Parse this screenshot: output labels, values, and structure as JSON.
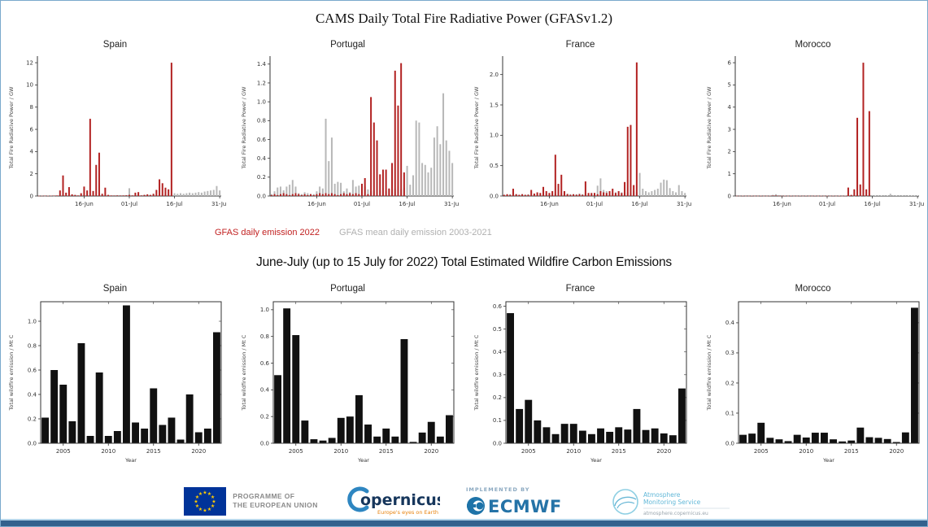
{
  "page": {
    "top_title": "CAMS Daily Total Fire Radiative Power (GFASv1.2)",
    "bottom_title": "June-July (up to 15 July for 2022) Total Estimated Wildfire Carbon Emissions"
  },
  "legend": {
    "red_label": "GFAS daily emission 2022",
    "gray_label": "GFAS mean daily emission 2003-2021",
    "red_color": "#c22222",
    "gray_color": "#b0b0b0"
  },
  "footer": {
    "eu_text_line1": "PROGRAMME OF",
    "eu_text_line2": "THE EUROPEAN UNION",
    "copernicus_name": "opernicus",
    "copernicus_tagline": "Europe's eyes on Earth",
    "implemented_by": "IMPLEMENTED BY",
    "ecmwf_name": "ECMWF",
    "ams_line1": "Atmosphere",
    "ams_line2": "Monitoring Service",
    "ams_url": "atmosphere.copernicus.eu",
    "eu_flag_blue": "#003399",
    "eu_star_yellow": "#ffcc00",
    "copernicus_blue": "#2e86c1",
    "ecmwf_blue": "#2573a7",
    "ams_light_blue": "#62b8d8"
  },
  "chart_data": [
    {
      "id": "frp-spain",
      "kind": "daily",
      "type": "bar",
      "title": "Spain",
      "ylabel": "Total Fire Radiative Power / GW",
      "ylim": [
        0,
        12.3
      ],
      "n_days": 61,
      "yticks": [
        {
          "v": 0,
          "l": "0"
        },
        {
          "v": 2,
          "l": "2"
        },
        {
          "v": 4,
          "l": "4"
        },
        {
          "v": 6,
          "l": "6"
        },
        {
          "v": 8,
          "l": "8"
        },
        {
          "v": 10,
          "l": "10"
        },
        {
          "v": 12,
          "l": "12"
        }
      ],
      "xticks": [
        {
          "i": 15,
          "l": "16-Jun"
        },
        {
          "i": 30,
          "l": "01-Jul"
        },
        {
          "i": 45,
          "l": "16-Jul"
        },
        {
          "i": 60,
          "l": "31-Jul"
        }
      ],
      "series": [
        {
          "name": "GFAS mean daily emission 2003-2021",
          "color": "#b8b8b8",
          "values": [
            0.02,
            0.03,
            0.02,
            0.04,
            0.03,
            0.02,
            0.03,
            0.05,
            0.04,
            0.03,
            0.05,
            0.04,
            0.06,
            0.05,
            0.04,
            0.06,
            0.05,
            0.07,
            0.06,
            0.05,
            0.06,
            0.08,
            0.06,
            0.07,
            0.05,
            0.06,
            0.08,
            0.07,
            0.06,
            0.08,
            0.7,
            0.08,
            0.07,
            0.09,
            0.08,
            0.1,
            0.09,
            0.08,
            0.1,
            0.09,
            0.11,
            0.1,
            0.12,
            0.11,
            0.13,
            0.25,
            0.2,
            0.25,
            0.2,
            0.25,
            0.3,
            0.25,
            0.3,
            0.35,
            0.3,
            0.4,
            0.45,
            0.5,
            0.55,
            0.9,
            0.5
          ]
        },
        {
          "name": "GFAS daily emission 2022",
          "color": "#b22222",
          "values": [
            0.02,
            0.02,
            0.03,
            0.02,
            0.03,
            0.04,
            0.05,
            0.5,
            1.85,
            0.3,
            0.8,
            0.15,
            0.1,
            0.05,
            0.25,
            0.85,
            0.5,
            6.95,
            0.45,
            2.8,
            3.9,
            0.2,
            0.75,
            0.1,
            0.05,
            0.04,
            0.05,
            0.04,
            0.05,
            0.06,
            0.1,
            0.05,
            0.3,
            0.35,
            0.05,
            0.1,
            0.15,
            0.1,
            0.2,
            0.55,
            1.5,
            1.15,
            0.75,
            0.6,
            12.0
          ]
        }
      ]
    },
    {
      "id": "frp-portugal",
      "kind": "daily",
      "type": "bar",
      "title": "Portugal",
      "ylabel": "Total Fire Radiative Power / GW",
      "ylim": [
        0,
        1.45
      ],
      "n_days": 61,
      "yticks": [
        {
          "v": 0,
          "l": "0.0"
        },
        {
          "v": 0.2,
          "l": "0.2"
        },
        {
          "v": 0.4,
          "l": "0.4"
        },
        {
          "v": 0.6,
          "l": "0.6"
        },
        {
          "v": 0.8,
          "l": "0.8"
        },
        {
          "v": 1.0,
          "l": "1.0"
        },
        {
          "v": 1.2,
          "l": "1.2"
        },
        {
          "v": 1.4,
          "l": "1.4"
        }
      ],
      "xticks": [
        {
          "i": 15,
          "l": "16-Jun"
        },
        {
          "i": 30,
          "l": "01-Jul"
        },
        {
          "i": 45,
          "l": "16-Jul"
        },
        {
          "i": 60,
          "l": "31-Jul"
        }
      ],
      "series": [
        {
          "name": "GFAS mean daily emission 2003-2021",
          "color": "#b8b8b8",
          "values": [
            0.02,
            0.05,
            0.09,
            0.1,
            0.06,
            0.1,
            0.12,
            0.17,
            0.1,
            0.03,
            0.02,
            0.04,
            0.03,
            0.02,
            0.02,
            0.05,
            0.1,
            0.08,
            0.82,
            0.37,
            0.62,
            0.13,
            0.15,
            0.14,
            0.05,
            0.08,
            0.04,
            0.17,
            0.1,
            0.11,
            0.08,
            0.1,
            0.07,
            0.05,
            0.06,
            0.04,
            0.06,
            0.08,
            0.05,
            0.07,
            0.06,
            0.08,
            0.1,
            0.07,
            0.09,
            0.32,
            0.12,
            0.22,
            0.8,
            0.78,
            0.35,
            0.33,
            0.25,
            0.3,
            0.62,
            0.74,
            0.55,
            1.09,
            0.59,
            0.48,
            0.35
          ]
        },
        {
          "name": "GFAS daily emission 2022",
          "color": "#b22222",
          "values": [
            0.01,
            0.02,
            0.01,
            0.02,
            0.03,
            0.02,
            0.01,
            0.02,
            0.03,
            0.02,
            0.01,
            0.02,
            0.01,
            0.02,
            0.01,
            0.02,
            0.03,
            0.02,
            0.03,
            0.02,
            0.03,
            0.02,
            0.01,
            0.02,
            0.03,
            0.02,
            0.03,
            0.02,
            0.03,
            0.02,
            0.13,
            0.19,
            0.02,
            1.05,
            0.78,
            0.59,
            0.23,
            0.28,
            0.28,
            0.08,
            0.35,
            1.33,
            0.96,
            1.41,
            0.25
          ]
        }
      ]
    },
    {
      "id": "frp-france",
      "kind": "daily",
      "type": "bar",
      "title": "France",
      "ylabel": "Total Fire Radiative Power / GW",
      "ylim": [
        0,
        2.25
      ],
      "n_days": 61,
      "yticks": [
        {
          "v": 0,
          "l": "0.0"
        },
        {
          "v": 0.5,
          "l": "0.5"
        },
        {
          "v": 1.0,
          "l": "1.0"
        },
        {
          "v": 1.5,
          "l": "1.5"
        },
        {
          "v": 2.0,
          "l": "2.0"
        }
      ],
      "xticks": [
        {
          "i": 15,
          "l": "16-Jun"
        },
        {
          "i": 30,
          "l": "01-Jul"
        },
        {
          "i": 45,
          "l": "16-Jul"
        },
        {
          "i": 60,
          "l": "31-Jul"
        }
      ],
      "series": [
        {
          "name": "GFAS mean daily emission 2003-2021",
          "color": "#b8b8b8",
          "values": [
            0.02,
            0.02,
            0.03,
            0.02,
            0.03,
            0.02,
            0.03,
            0.02,
            0.03,
            0.02,
            0.03,
            0.04,
            0.03,
            0.04,
            0.03,
            0.04,
            0.03,
            0.04,
            0.03,
            0.04,
            0.03,
            0.04,
            0.03,
            0.02,
            0.03,
            0.04,
            0.03,
            0.04,
            0.03,
            0.04,
            0.05,
            0.17,
            0.29,
            0.1,
            0.08,
            0.06,
            0.05,
            0.06,
            0.05,
            0.06,
            0.05,
            0.06,
            0.05,
            0.08,
            0.06,
            0.38,
            0.12,
            0.08,
            0.06,
            0.08,
            0.1,
            0.12,
            0.22,
            0.27,
            0.26,
            0.13,
            0.08,
            0.06,
            0.18,
            0.08,
            0.05
          ]
        },
        {
          "name": "GFAS daily emission 2022",
          "color": "#b22222",
          "values": [
            0.02,
            0.03,
            0.02,
            0.12,
            0.03,
            0.02,
            0.03,
            0.02,
            0.02,
            0.1,
            0.04,
            0.06,
            0.05,
            0.15,
            0.08,
            0.05,
            0.08,
            0.68,
            0.2,
            0.35,
            0.08,
            0.03,
            0.02,
            0.03,
            0.02,
            0.03,
            0.02,
            0.24,
            0.05,
            0.05,
            0.05,
            0.03,
            0.08,
            0.06,
            0.05,
            0.08,
            0.12,
            0.05,
            0.08,
            0.05,
            0.23,
            1.14,
            1.17,
            0.18,
            2.2
          ]
        }
      ]
    },
    {
      "id": "frp-morocco",
      "kind": "daily",
      "type": "bar",
      "title": "Morocco",
      "ylabel": "Total Fire Radiative Power / GW",
      "ylim": [
        0,
        6.15
      ],
      "n_days": 61,
      "yticks": [
        {
          "v": 0,
          "l": "0"
        },
        {
          "v": 1,
          "l": "1"
        },
        {
          "v": 2,
          "l": "2"
        },
        {
          "v": 3,
          "l": "3"
        },
        {
          "v": 4,
          "l": "4"
        },
        {
          "v": 5,
          "l": "5"
        },
        {
          "v": 6,
          "l": "6"
        }
      ],
      "xticks": [
        {
          "i": 15,
          "l": "16-Jun"
        },
        {
          "i": 30,
          "l": "01-Jul"
        },
        {
          "i": 45,
          "l": "16-Jul"
        },
        {
          "i": 60,
          "l": "31-Jul"
        }
      ],
      "series": [
        {
          "name": "GFAS mean daily emission 2003-2021",
          "color": "#b8b8b8",
          "values": [
            0.01,
            0.01,
            0.02,
            0.01,
            0.01,
            0.02,
            0.01,
            0.01,
            0.02,
            0.01,
            0.01,
            0.02,
            0.05,
            0.08,
            0.04,
            0.03,
            0.02,
            0.01,
            0.02,
            0.01,
            0.01,
            0.02,
            0.01,
            0.02,
            0.01,
            0.01,
            0.02,
            0.01,
            0.02,
            0.01,
            0.02,
            0.01,
            0.02,
            0.01,
            0.02,
            0.01,
            0.02,
            0.01,
            0.02,
            0.01,
            0.02,
            0.01,
            0.02,
            0.01,
            0.02,
            0.03,
            0.02,
            0.03,
            0.02,
            0.03,
            0.02,
            0.1,
            0.03,
            0.02,
            0.03,
            0.02,
            0.03,
            0.02,
            0.02,
            0.02,
            0.02
          ]
        },
        {
          "name": "GFAS daily emission 2022",
          "color": "#b22222",
          "values": [
            0.01,
            0.01,
            0.01,
            0.01,
            0.01,
            0.01,
            0.01,
            0.01,
            0.01,
            0.01,
            0.01,
            0.01,
            0.02,
            0.02,
            0.01,
            0.01,
            0.01,
            0.01,
            0.01,
            0.01,
            0.01,
            0.01,
            0.01,
            0.01,
            0.01,
            0.01,
            0.01,
            0.01,
            0.01,
            0.01,
            0.01,
            0.01,
            0.01,
            0.01,
            0.01,
            0.01,
            0.01,
            0.38,
            0.05,
            0.3,
            3.52,
            0.52,
            6.0,
            0.3,
            3.82
          ]
        }
      ]
    },
    {
      "id": "emis-spain",
      "kind": "years",
      "type": "bar",
      "title": "Spain",
      "xlabel": "Year",
      "ylabel": "Total wildfire emission / Mt C",
      "ylim": [
        0,
        1.16
      ],
      "bar_color": "#111111",
      "yticks": [
        {
          "v": 0,
          "l": "0.0"
        },
        {
          "v": 0.2,
          "l": "0.2"
        },
        {
          "v": 0.4,
          "l": "0.4"
        },
        {
          "v": 0.6,
          "l": "0.6"
        },
        {
          "v": 0.8,
          "l": "0.8"
        },
        {
          "v": 1.0,
          "l": "1.0"
        }
      ],
      "categories": [
        2003,
        2004,
        2005,
        2006,
        2007,
        2008,
        2009,
        2010,
        2011,
        2012,
        2013,
        2014,
        2015,
        2016,
        2017,
        2018,
        2019,
        2020,
        2021,
        2022
      ],
      "xticks": [
        2005,
        2010,
        2015,
        2020
      ],
      "values": [
        0.21,
        0.6,
        0.48,
        0.18,
        0.82,
        0.06,
        0.58,
        0.06,
        0.1,
        1.13,
        0.17,
        0.12,
        0.45,
        0.15,
        0.21,
        0.03,
        0.4,
        0.09,
        0.12,
        0.91
      ]
    },
    {
      "id": "emis-portugal",
      "kind": "years",
      "type": "bar",
      "title": "Portugal",
      "xlabel": "Year",
      "ylabel": "Total wildfire emission / Mt C",
      "ylim": [
        0,
        1.06
      ],
      "bar_color": "#111111",
      "yticks": [
        {
          "v": 0,
          "l": "0.0"
        },
        {
          "v": 0.2,
          "l": "0.2"
        },
        {
          "v": 0.4,
          "l": "0.4"
        },
        {
          "v": 0.6,
          "l": "0.6"
        },
        {
          "v": 0.8,
          "l": "0.8"
        },
        {
          "v": 1.0,
          "l": "1.0"
        }
      ],
      "categories": [
        2003,
        2004,
        2005,
        2006,
        2007,
        2008,
        2009,
        2010,
        2011,
        2012,
        2013,
        2014,
        2015,
        2016,
        2017,
        2018,
        2019,
        2020,
        2021,
        2022
      ],
      "xticks": [
        2005,
        2010,
        2015,
        2020
      ],
      "values": [
        0.51,
        1.01,
        0.81,
        0.17,
        0.03,
        0.02,
        0.04,
        0.19,
        0.2,
        0.36,
        0.14,
        0.05,
        0.11,
        0.05,
        0.78,
        0.01,
        0.08,
        0.16,
        0.05,
        0.21
      ]
    },
    {
      "id": "emis-france",
      "kind": "years",
      "type": "bar",
      "title": "France",
      "xlabel": "Year",
      "ylabel": "Total wildfire emission / Mt C",
      "ylim": [
        0,
        0.62
      ],
      "bar_color": "#111111",
      "yticks": [
        {
          "v": 0,
          "l": "0.0"
        },
        {
          "v": 0.1,
          "l": "0.1"
        },
        {
          "v": 0.2,
          "l": "0.2"
        },
        {
          "v": 0.3,
          "l": "0.3"
        },
        {
          "v": 0.4,
          "l": "0.4"
        },
        {
          "v": 0.5,
          "l": "0.5"
        },
        {
          "v": 0.6,
          "l": "0.6"
        }
      ],
      "categories": [
        2003,
        2004,
        2005,
        2006,
        2007,
        2008,
        2009,
        2010,
        2011,
        2012,
        2013,
        2014,
        2015,
        2016,
        2017,
        2018,
        2019,
        2020,
        2021,
        2022
      ],
      "xticks": [
        2005,
        2010,
        2015,
        2020
      ],
      "values": [
        0.57,
        0.15,
        0.19,
        0.1,
        0.07,
        0.04,
        0.085,
        0.085,
        0.055,
        0.04,
        0.065,
        0.05,
        0.07,
        0.06,
        0.15,
        0.058,
        0.065,
        0.043,
        0.035,
        0.24
      ]
    },
    {
      "id": "emis-morocco",
      "kind": "years",
      "type": "bar",
      "title": "Morocco",
      "xlabel": "Year",
      "ylabel": "Total wildfire emission / Mt C",
      "ylim": [
        0,
        0.47
      ],
      "bar_color": "#111111",
      "yticks": [
        {
          "v": 0,
          "l": "0.0"
        },
        {
          "v": 0.1,
          "l": "0.1"
        },
        {
          "v": 0.2,
          "l": "0.2"
        },
        {
          "v": 0.3,
          "l": "0.3"
        },
        {
          "v": 0.4,
          "l": "0.4"
        }
      ],
      "categories": [
        2003,
        2004,
        2005,
        2006,
        2007,
        2008,
        2009,
        2010,
        2011,
        2012,
        2013,
        2014,
        2015,
        2016,
        2017,
        2018,
        2019,
        2020,
        2021,
        2022
      ],
      "xticks": [
        2005,
        2010,
        2015,
        2020
      ],
      "values": [
        0.028,
        0.032,
        0.068,
        0.018,
        0.013,
        0.007,
        0.028,
        0.019,
        0.035,
        0.035,
        0.013,
        0.006,
        0.009,
        0.052,
        0.02,
        0.018,
        0.014,
        0.004,
        0.036,
        0.45
      ]
    }
  ]
}
